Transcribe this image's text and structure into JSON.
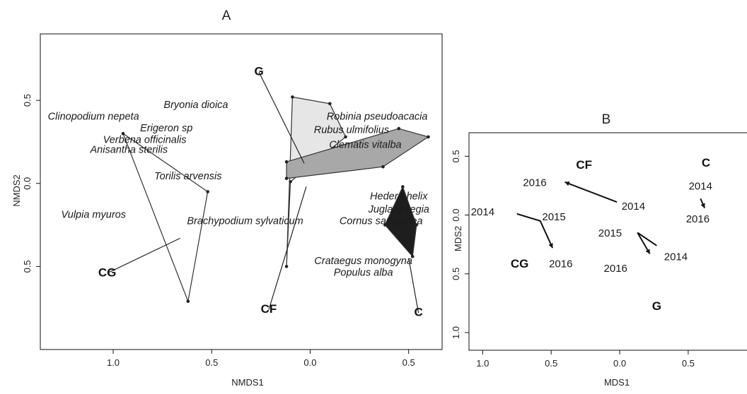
{
  "chart_data": [
    {
      "type": "scatter",
      "title": "A",
      "xlabel": "NMDS1",
      "ylabel": "NMDS2",
      "xlim": [
        1.37,
        -0.67
      ],
      "ylim": [
        -1.0,
        0.9
      ],
      "xticks": [
        {
          "v": 1.0,
          "label": "1.0"
        },
        {
          "v": 0.5,
          "label": "0.5"
        },
        {
          "v": 0.0,
          "label": "0.0"
        },
        {
          "v": -0.5,
          "label": "0.5"
        }
      ],
      "yticks": [
        {
          "v": 0.5,
          "label": "0.5"
        },
        {
          "v": 0.0,
          "label": "0.0"
        },
        {
          "v": -0.5,
          "label": "0.5"
        }
      ],
      "grid": false,
      "hulls": [
        {
          "group": "CG",
          "color": "#ffffff",
          "points": [
            [
              0.95,
              0.3
            ],
            [
              0.52,
              -0.05
            ],
            [
              0.62,
              -0.71
            ]
          ]
        },
        {
          "group": "CF",
          "color": "#e6e6e6",
          "points": [
            [
              0.09,
              0.52
            ],
            [
              -0.1,
              0.48
            ],
            [
              -0.18,
              0.28
            ],
            [
              0.1,
              0.01
            ],
            [
              0.12,
              -0.5
            ]
          ]
        },
        {
          "group": "G",
          "color": "#a8a8a8",
          "points": [
            [
              0.12,
              0.13
            ],
            [
              -0.45,
              0.33
            ],
            [
              -0.6,
              0.28
            ],
            [
              -0.37,
              0.1
            ],
            [
              0.12,
              0.03
            ]
          ]
        },
        {
          "group": "C",
          "color": "#1e1e1e",
          "points": [
            [
              -0.47,
              -0.02
            ],
            [
              -0.38,
              -0.25
            ],
            [
              -0.52,
              -0.44
            ],
            [
              -0.54,
              -0.25
            ]
          ]
        }
      ],
      "species": [
        {
          "name": "Bryonia dioica",
          "x": 0.58,
          "y": 0.47
        },
        {
          "name": "Clinopodium nepeta",
          "x": 1.1,
          "y": 0.4
        },
        {
          "name": "Erigeron sp",
          "x": 0.73,
          "y": 0.33
        },
        {
          "name": "Verbena officinalis",
          "x": 0.84,
          "y": 0.26
        },
        {
          "name": "Anisantha sterilis",
          "x": 0.92,
          "y": 0.2
        },
        {
          "name": "Torilis arvensis",
          "x": 0.62,
          "y": 0.04
        },
        {
          "name": "Vulpia myuros",
          "x": 1.1,
          "y": -0.19
        },
        {
          "name": "Brachypodium sylvaticum",
          "x": 0.33,
          "y": -0.23
        },
        {
          "name": "Robinia pseudoacacia",
          "x": -0.34,
          "y": 0.4
        },
        {
          "name": "Rubus ulmifolius",
          "x": -0.21,
          "y": 0.32
        },
        {
          "name": "Clematis vitalba",
          "x": -0.28,
          "y": 0.23
        },
        {
          "name": "Hedera helix",
          "x": -0.45,
          "y": -0.08
        },
        {
          "name": "Juglans regia",
          "x": -0.45,
          "y": -0.16
        },
        {
          "name": "Cornus sanguinea",
          "x": -0.36,
          "y": -0.23
        },
        {
          "name": "Crataegus monogyna",
          "x": -0.27,
          "y": -0.47
        },
        {
          "name": "Populus alba",
          "x": -0.27,
          "y": -0.54
        }
      ],
      "group_labels": [
        {
          "label": "G",
          "x": 0.26,
          "y": 0.67,
          "to": [
            0.03,
            0.12
          ]
        },
        {
          "label": "CF",
          "x": 0.21,
          "y": -0.76,
          "to": [
            0.02,
            -0.02
          ]
        },
        {
          "label": "CG",
          "x": 1.03,
          "y": -0.54,
          "to": [
            0.66,
            -0.33
          ]
        },
        {
          "label": "C",
          "x": -0.55,
          "y": -0.78,
          "to": [
            -0.5,
            -0.45
          ]
        }
      ]
    },
    {
      "type": "line",
      "title": "B",
      "xlabel": "MDS1",
      "ylabel": "MDS2",
      "xlim": [
        1.1,
        -0.95
      ],
      "ylim": [
        -1.15,
        0.7
      ],
      "xticks": [
        {
          "v": 1.0,
          "label": "1.0"
        },
        {
          "v": 0.5,
          "label": "0.5"
        },
        {
          "v": 0.0,
          "label": "0.0"
        },
        {
          "v": -0.5,
          "label": "0.5"
        }
      ],
      "yticks": [
        {
          "v": 0.5,
          "label": "0.5"
        },
        {
          "v": 0.0,
          "label": "0.0"
        },
        {
          "v": -0.5,
          "label": "0.5"
        },
        {
          "v": -1.0,
          "label": "1.0"
        }
      ],
      "grid": false,
      "series": [
        {
          "name": "CG",
          "label_pos": [
            0.73,
            -0.42
          ],
          "points": [
            {
              "x": 0.75,
              "y": 0.01,
              "year": "2014"
            },
            {
              "x": 0.58,
              "y": -0.05,
              "year": "2015"
            },
            {
              "x": 0.49,
              "y": -0.28,
              "year": "2016"
            }
          ]
        },
        {
          "name": "CF",
          "label_pos": [
            0.26,
            0.42
          ],
          "points": [
            {
              "x": 0.02,
              "y": 0.11,
              "year": "2014"
            },
            {
              "x": 0.4,
              "y": 0.28,
              "year": "2016"
            }
          ]
        },
        {
          "name": "G",
          "label_pos": [
            -0.27,
            -0.78
          ],
          "points": [
            {
              "x": -0.27,
              "y": -0.26,
              "year": "2014"
            },
            {
              "x": -0.13,
              "y": -0.15,
              "year": "2015"
            },
            {
              "x": -0.22,
              "y": -0.33,
              "year": "2016"
            }
          ]
        },
        {
          "name": "C",
          "label_pos": [
            -0.63,
            0.44
          ],
          "points": [
            {
              "x": -0.59,
              "y": 0.14,
              "year": "2014"
            },
            {
              "x": -0.62,
              "y": 0.06,
              "year": "2016"
            }
          ]
        }
      ],
      "year_labels": [
        {
          "text": "2016",
          "x": 0.62,
          "y": 0.27
        },
        {
          "text": "2014",
          "x": 1.0,
          "y": 0.02
        },
        {
          "text": "2015",
          "x": 0.48,
          "y": -0.02
        },
        {
          "text": "2016",
          "x": 0.43,
          "y": -0.42
        },
        {
          "text": "2014",
          "x": -0.1,
          "y": 0.07
        },
        {
          "text": "2015",
          "x": 0.07,
          "y": -0.16
        },
        {
          "text": "2016",
          "x": 0.03,
          "y": -0.46
        },
        {
          "text": "2014",
          "x": -0.41,
          "y": -0.36
        },
        {
          "text": "2014",
          "x": -0.59,
          "y": 0.24
        },
        {
          "text": "2016",
          "x": -0.57,
          "y": -0.04
        }
      ]
    }
  ]
}
